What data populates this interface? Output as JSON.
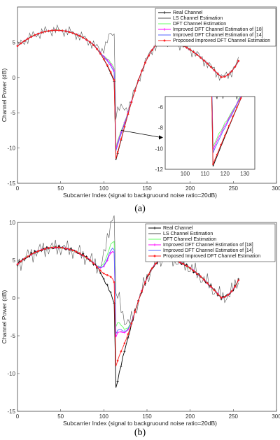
{
  "colors": {
    "real": "#000000",
    "ls": "#555555",
    "dft": "#66ff66",
    "improved18": "#ff00ff",
    "improved14": "#5566ff",
    "proposed": "#ff2222"
  },
  "chart_data": [
    {
      "type": "line",
      "caption": "(a)",
      "xlabel": "Subcarrier Index  (signal to backgruound noise ratio=20dB)",
      "ylabel": "Channel Power (dB)",
      "xlim": [
        0,
        300
      ],
      "ylim": [
        -15,
        10
      ],
      "xticks": [
        0,
        50,
        100,
        150,
        200,
        250,
        300
      ],
      "xtick_labels": [
        "0",
        "50",
        "100",
        "150",
        "200",
        "250",
        "300"
      ],
      "yticks": [
        -15,
        -10,
        -5,
        0,
        5
      ],
      "ytick_labels": [
        "-15",
        "-10",
        "-5",
        "0",
        "5"
      ],
      "legend_position": "top-right",
      "series": [
        {
          "name": "Real Channel",
          "key": "real",
          "min_db": -12.2,
          "noise": 0.0
        },
        {
          "name": "LS Channel Estimation",
          "key": "ls",
          "min_db": -5.5,
          "noise": 0.9
        },
        {
          "name": "DFT Channel Estimation",
          "key": "dft",
          "min_db": -10.3,
          "noise": 0.1
        },
        {
          "name": "Improved DFT Channel Estimation of [18]",
          "key": "improved18",
          "min_db": -10.6,
          "noise": 0.05
        },
        {
          "name": "Improved DFT Channel Estimation of [14]",
          "key": "improved14",
          "min_db": -10.9,
          "noise": 0.05
        },
        {
          "name": "Proposed Improved DFT Channel Estimation",
          "key": "proposed",
          "min_db": -12.0,
          "noise": 0.02
        }
      ],
      "inset": {
        "xlim": [
          90,
          135
        ],
        "ylim": [
          -12,
          -5
        ],
        "xticks": [
          100,
          110,
          120,
          130
        ],
        "xtick_labels": [
          "100",
          "110",
          "120",
          "130"
        ],
        "yticks": [
          -12,
          -10,
          -8,
          -6
        ],
        "ytick_labels": [
          "-12",
          "-10",
          "-8",
          "-6"
        ]
      }
    },
    {
      "type": "line",
      "caption": "(b)",
      "xlabel": "Subcarrier Index  (signal to backgruound noise ratio=20dB)",
      "ylabel": "Channel Power (dB)",
      "xlim": [
        0,
        300
      ],
      "ylim": [
        -15,
        10
      ],
      "xticks": [
        0,
        50,
        100,
        150,
        200,
        250,
        300
      ],
      "xtick_labels": [
        "0",
        "50",
        "100",
        "150",
        "200",
        "250",
        "300"
      ],
      "yticks": [
        -15,
        -10,
        -5,
        0,
        5,
        10
      ],
      "ytick_labels": [
        "-15",
        "-10",
        "-5",
        "0",
        "5",
        "10"
      ],
      "legend_position": "top-right",
      "series": [
        {
          "name": "Real Channel",
          "key": "real",
          "min_db": -12.3,
          "noise": 0.0
        },
        {
          "name": "LS Channel Estimation",
          "key": "ls",
          "min_db": -0.5,
          "noise": 1.3
        },
        {
          "name": "DFT Channel Estimation",
          "key": "dft",
          "min_db": -4.2,
          "noise": 0.15
        },
        {
          "name": "Improved DFT Channel Estimation of [18]",
          "key": "improved18",
          "min_db": -5.6,
          "noise": 0.08
        },
        {
          "name": "Improved DFT Channel Estimation of [14]",
          "key": "improved14",
          "min_db": -5.2,
          "noise": 0.08
        },
        {
          "name": "Proposed Improved DFT Channel Estimation",
          "key": "proposed",
          "min_db": -9.5,
          "noise": 0.03
        }
      ]
    }
  ]
}
